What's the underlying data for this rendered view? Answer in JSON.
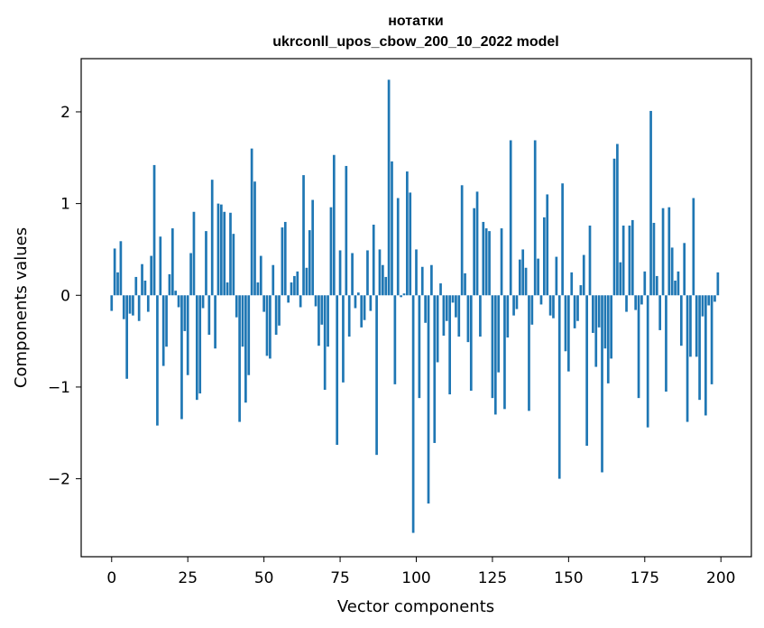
{
  "chart_data": {
    "type": "bar",
    "title": "нотатки",
    "subtitle": "ukrconll_upos_cbow_200_10_2022 model",
    "xlabel": "Vector components",
    "ylabel": "Components values",
    "xlim": [
      -10,
      210
    ],
    "ylim": [
      -2.85,
      2.58
    ],
    "xticks": [
      0,
      25,
      50,
      75,
      100,
      125,
      150,
      175,
      200
    ],
    "yticks": [
      -2,
      -1,
      0,
      1,
      2
    ],
    "xtick_labels": [
      "0",
      "25",
      "50",
      "75",
      "100",
      "125",
      "150",
      "175",
      "200"
    ],
    "ytick_labels": [
      "−2",
      "−1",
      "0",
      "1",
      "2"
    ],
    "grid": false,
    "legend": "none",
    "bar_color": "#1f77b4",
    "values": [
      -0.17,
      0.51,
      0.25,
      0.59,
      -0.26,
      -0.91,
      -0.2,
      -0.22,
      0.2,
      -0.28,
      0.34,
      0.16,
      -0.18,
      0.43,
      1.42,
      -1.42,
      0.64,
      -0.77,
      -0.56,
      0.23,
      0.73,
      0.05,
      -0.13,
      -1.35,
      -0.39,
      -0.87,
      0.46,
      0.91,
      -1.14,
      -1.07,
      -0.14,
      0.7,
      -0.43,
      1.26,
      -0.58,
      1.0,
      0.99,
      0.91,
      0.14,
      0.9,
      0.67,
      -0.24,
      -1.38,
      -0.56,
      -1.17,
      -0.87,
      1.6,
      1.24,
      0.14,
      0.43,
      -0.18,
      -0.66,
      -0.69,
      0.33,
      -0.43,
      -0.33,
      0.74,
      0.8,
      -0.08,
      0.14,
      0.21,
      0.26,
      -0.13,
      1.31,
      0.3,
      0.71,
      1.04,
      -0.12,
      -0.55,
      -0.32,
      -1.03,
      -0.56,
      0.96,
      1.53,
      -1.63,
      0.49,
      -0.95,
      1.41,
      -0.45,
      0.46,
      -0.14,
      0.03,
      -0.35,
      -0.27,
      0.49,
      -0.17,
      0.77,
      -1.74,
      0.5,
      0.33,
      0.2,
      2.35,
      1.46,
      -0.97,
      1.06,
      -0.02,
      0.02,
      1.35,
      1.12,
      -2.59,
      0.5,
      -1.12,
      0.31,
      -0.3,
      -2.27,
      0.33,
      -1.61,
      -0.73,
      0.13,
      -0.44,
      -0.28,
      -1.08,
      -0.08,
      -0.24,
      -0.45,
      1.2,
      0.24,
      -0.51,
      -1.04,
      0.95,
      1.13,
      -0.45,
      0.8,
      0.73,
      0.7,
      -1.12,
      -1.3,
      -0.84,
      0.73,
      -1.24,
      -0.46,
      1.69,
      -0.22,
      -0.15,
      0.39,
      0.5,
      0.3,
      -1.26,
      -0.32,
      1.69,
      0.4,
      -0.1,
      0.85,
      1.1,
      -0.22,
      -0.25,
      0.42,
      -2.0,
      1.22,
      -0.61,
      -0.83,
      0.25,
      -0.36,
      -0.28,
      0.11,
      0.44,
      -1.64,
      0.76,
      -0.41,
      -0.78,
      -0.35,
      -1.93,
      -0.58,
      -0.96,
      -0.69,
      1.49,
      1.65,
      0.36,
      0.76,
      -0.18,
      0.76,
      0.82,
      -0.16,
      -1.12,
      -0.1,
      0.26,
      -1.44,
      2.01,
      0.79,
      0.21,
      -0.38,
      0.95,
      -1.05,
      0.96,
      0.52,
      0.16,
      0.26,
      -0.55,
      0.57,
      -1.38,
      -0.67,
      1.06,
      -0.67,
      -1.14,
      -0.23,
      -1.31,
      -0.11,
      -0.97,
      -0.07,
      0.25
    ]
  }
}
